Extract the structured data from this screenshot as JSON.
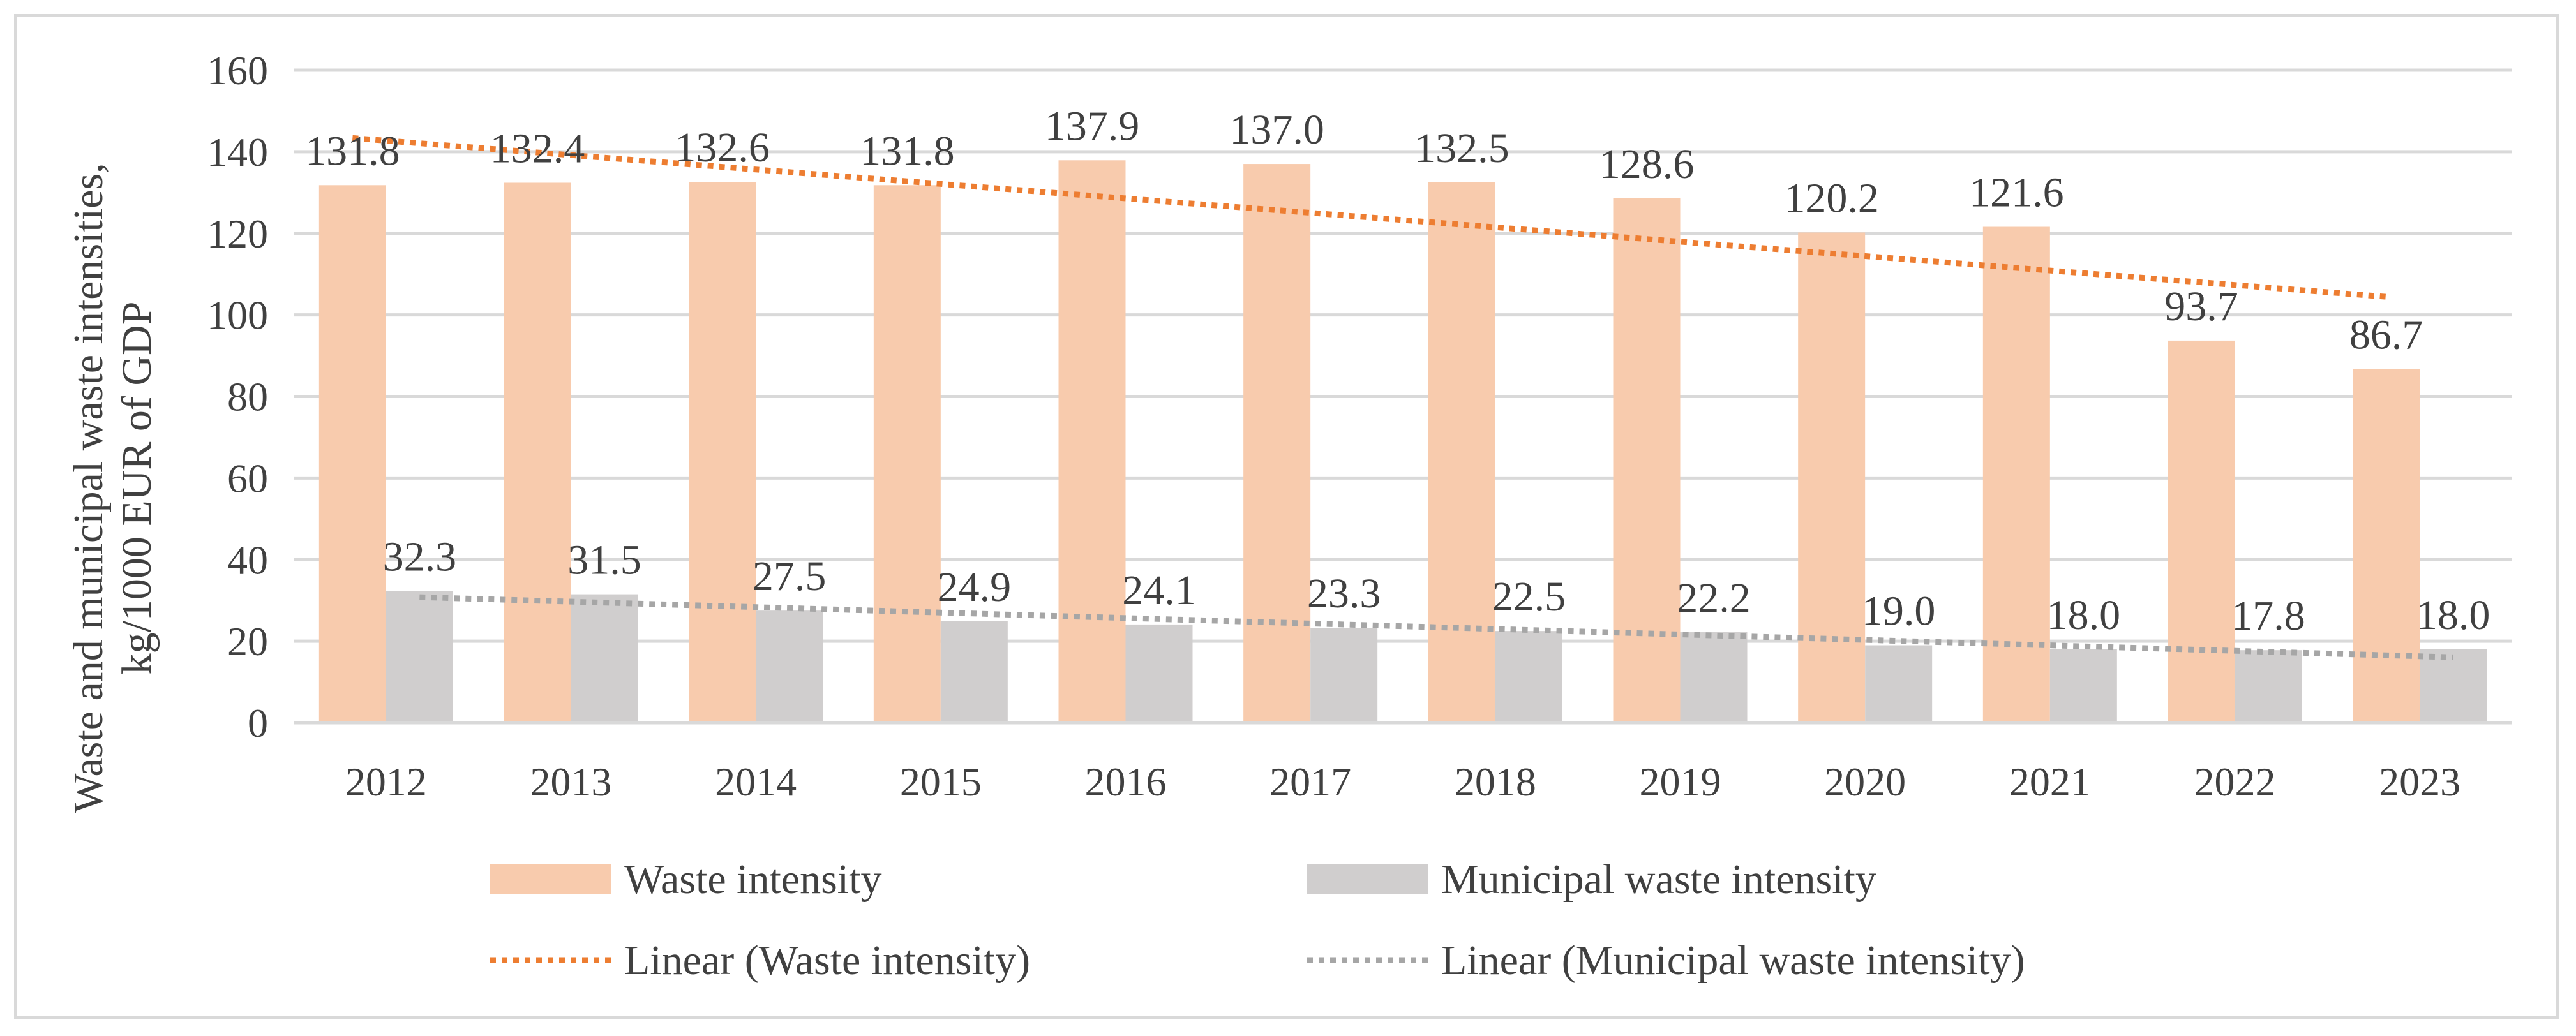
{
  "chart_data": {
    "type": "bar",
    "title": "",
    "xlabel": "",
    "ylabel_line1": "Waste and municipal waste intensities,",
    "ylabel_line2": "kg/1000 EUR of GDP",
    "ylim": [
      0,
      160
    ],
    "yticks": [
      0,
      20,
      40,
      60,
      80,
      100,
      120,
      140,
      160
    ],
    "grid": true,
    "legend_position": "bottom",
    "categories": [
      "2012",
      "2013",
      "2014",
      "2015",
      "2016",
      "2017",
      "2018",
      "2019",
      "2020",
      "2021",
      "2022",
      "2023"
    ],
    "series": [
      {
        "name": "Waste intensity",
        "color": "#f8cbad",
        "values": [
          131.8,
          132.4,
          132.6,
          131.8,
          137.9,
          137.0,
          132.5,
          128.6,
          120.2,
          121.6,
          93.7,
          86.7
        ],
        "labels": [
          "131.8",
          "132.4",
          "132.6",
          "131.8",
          "137.9",
          "137.0",
          "132.5",
          "128.6",
          "120.2",
          "121.6",
          "93.7",
          "86.7"
        ]
      },
      {
        "name": "Municipal waste intensity",
        "color": "#d0cece",
        "values": [
          32.3,
          31.5,
          27.5,
          24.9,
          24.1,
          23.3,
          22.5,
          22.2,
          19.0,
          18.0,
          17.8,
          18.0
        ],
        "labels": [
          "32.3",
          "31.5",
          "27.5",
          "24.9",
          "24.1",
          "23.3",
          "22.5",
          "22.2",
          "19.0",
          "18.0",
          "17.8",
          "18.0"
        ]
      }
    ],
    "trendlines": [
      {
        "name": "Linear (Waste intensity)",
        "of_series": 0,
        "type": "linear",
        "color": "#ed7d31"
      },
      {
        "name": "Linear (Municipal waste intensity)",
        "of_series": 1,
        "type": "linear",
        "color": "#a6a6a6"
      }
    ]
  }
}
